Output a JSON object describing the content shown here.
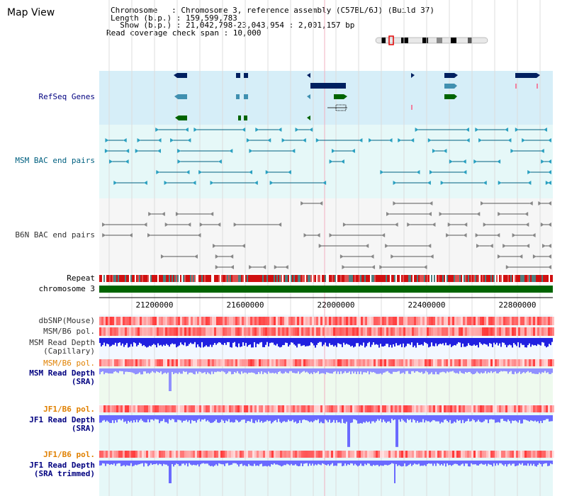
{
  "app": {
    "title": "Map View"
  },
  "header": {
    "chromosome_line": "Chromosome   : Chromosome 3, reference assembly (C57BL/6J) (Build 37)",
    "length_line": "Length (b.p.) : 159,599,783",
    "show_line": "  Show (b.p.) : 21,042,798-23,043,954 : 2,001,157 bp",
    "coverage_line": "Read coverage check span : 10,000"
  },
  "tracks": {
    "refseq": "RefSeq Genes",
    "msm_bac": "MSM BAC end pairs",
    "b6n_bac": "B6N BAC end pairs",
    "repeat": "Repeat",
    "chromosome": "chromosome 3",
    "dbsnp": "dbSNP(Mouse)",
    "msm_b6_pol": "MSM/B6 pol.",
    "msm_depth_cap_1": "MSM Read Depth",
    "msm_depth_cap_2": "(Capillary)",
    "msm_b6_pol_2": "MSM/B6 pol.",
    "msm_depth_sra_1": "MSM Read Depth",
    "msm_depth_sra_2": "(SRA)",
    "jf1_b6_pol": "JF1/B6 pol.",
    "jf1_depth_sra_1": "JF1 Read Depth",
    "jf1_depth_sra_2": "(SRA)",
    "jf1_b6_pol_2": "JF1/B6 pol.",
    "jf1_depth_trim_1": "JF1 Read Depth",
    "jf1_depth_trim_2": "(SRA trimmed)"
  },
  "axis": {
    "ticks": [
      "21200000",
      "21600000",
      "22000000",
      "22400000",
      "22800000"
    ]
  },
  "colors": {
    "label_blue": "#000080",
    "label_teal": "#006080",
    "label_orange": "#e08000",
    "refseq_bg": "#d6eef8",
    "msm_bg": "#e6f8f8",
    "chromosome_bar": "#006400"
  }
}
